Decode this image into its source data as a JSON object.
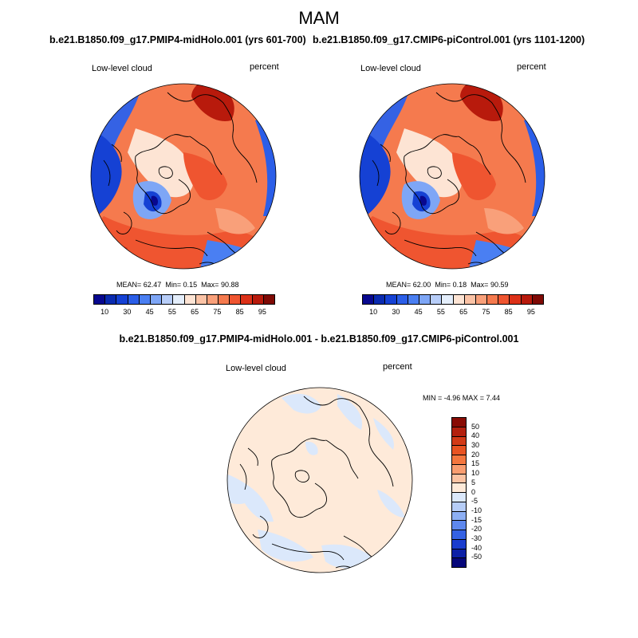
{
  "figure": {
    "title": "MAM"
  },
  "panel_left": {
    "subtitle": "b.e21.B1850.f09_g17.PMIP4-midHolo.001 (yrs 601-700)",
    "variable": "Low-level cloud",
    "units": "percent",
    "mean_label": "MEAN=",
    "mean": "62.47",
    "min_label": "Min=",
    "min": "0.15",
    "max_label": "Max=",
    "max": "90.88"
  },
  "panel_right": {
    "subtitle": "b.e21.B1850.f09_g17.CMIP6-piControl.001 (yrs 1101-1200)",
    "variable": "Low-level cloud",
    "units": "percent",
    "mean_label": "MEAN=",
    "mean": "62.00",
    "min_label": "Min=",
    "min": "0.18",
    "max_label": "Max=",
    "max": "90.59"
  },
  "panel_diff": {
    "subtitle": "b.e21.B1850.f09_g17.PMIP4-midHolo.001 - b.e21.B1850.f09_g17.CMIP6-piControl.001",
    "variable": "Low-level cloud",
    "units": "percent",
    "stats_text": "MIN =  -4.96 MAX =   7.44"
  },
  "colorbar_abs": {
    "ticks": [
      "10",
      "30",
      "45",
      "55",
      "65",
      "75",
      "85",
      "95"
    ],
    "colors": [
      "#08088f",
      "#0a2bb0",
      "#1541d4",
      "#2b5ee8",
      "#4a7ff2",
      "#7ea6f6",
      "#b7cdf8",
      "#e4eefb",
      "#fde4d4",
      "#fbc3a6",
      "#f9a07a",
      "#f57a4e",
      "#ef5530",
      "#dc3118",
      "#b81a0c",
      "#7f0a05"
    ]
  },
  "colorbar_diff": {
    "ticks": [
      "50",
      "40",
      "30",
      "20",
      "15",
      "10",
      "5",
      "0",
      "-5",
      "-10",
      "-15",
      "-20",
      "-30",
      "-40",
      "-50"
    ],
    "colors": [
      "#880b04",
      "#b3200e",
      "#d23a17",
      "#e85322",
      "#f4763e",
      "#f99d70",
      "#fbc3a3",
      "#feead9",
      "#dbe8fb",
      "#b6cdf7",
      "#8daff4",
      "#5e88ee",
      "#3562e4",
      "#1a3dce",
      "#0c20a6",
      "#06077a"
    ]
  }
}
